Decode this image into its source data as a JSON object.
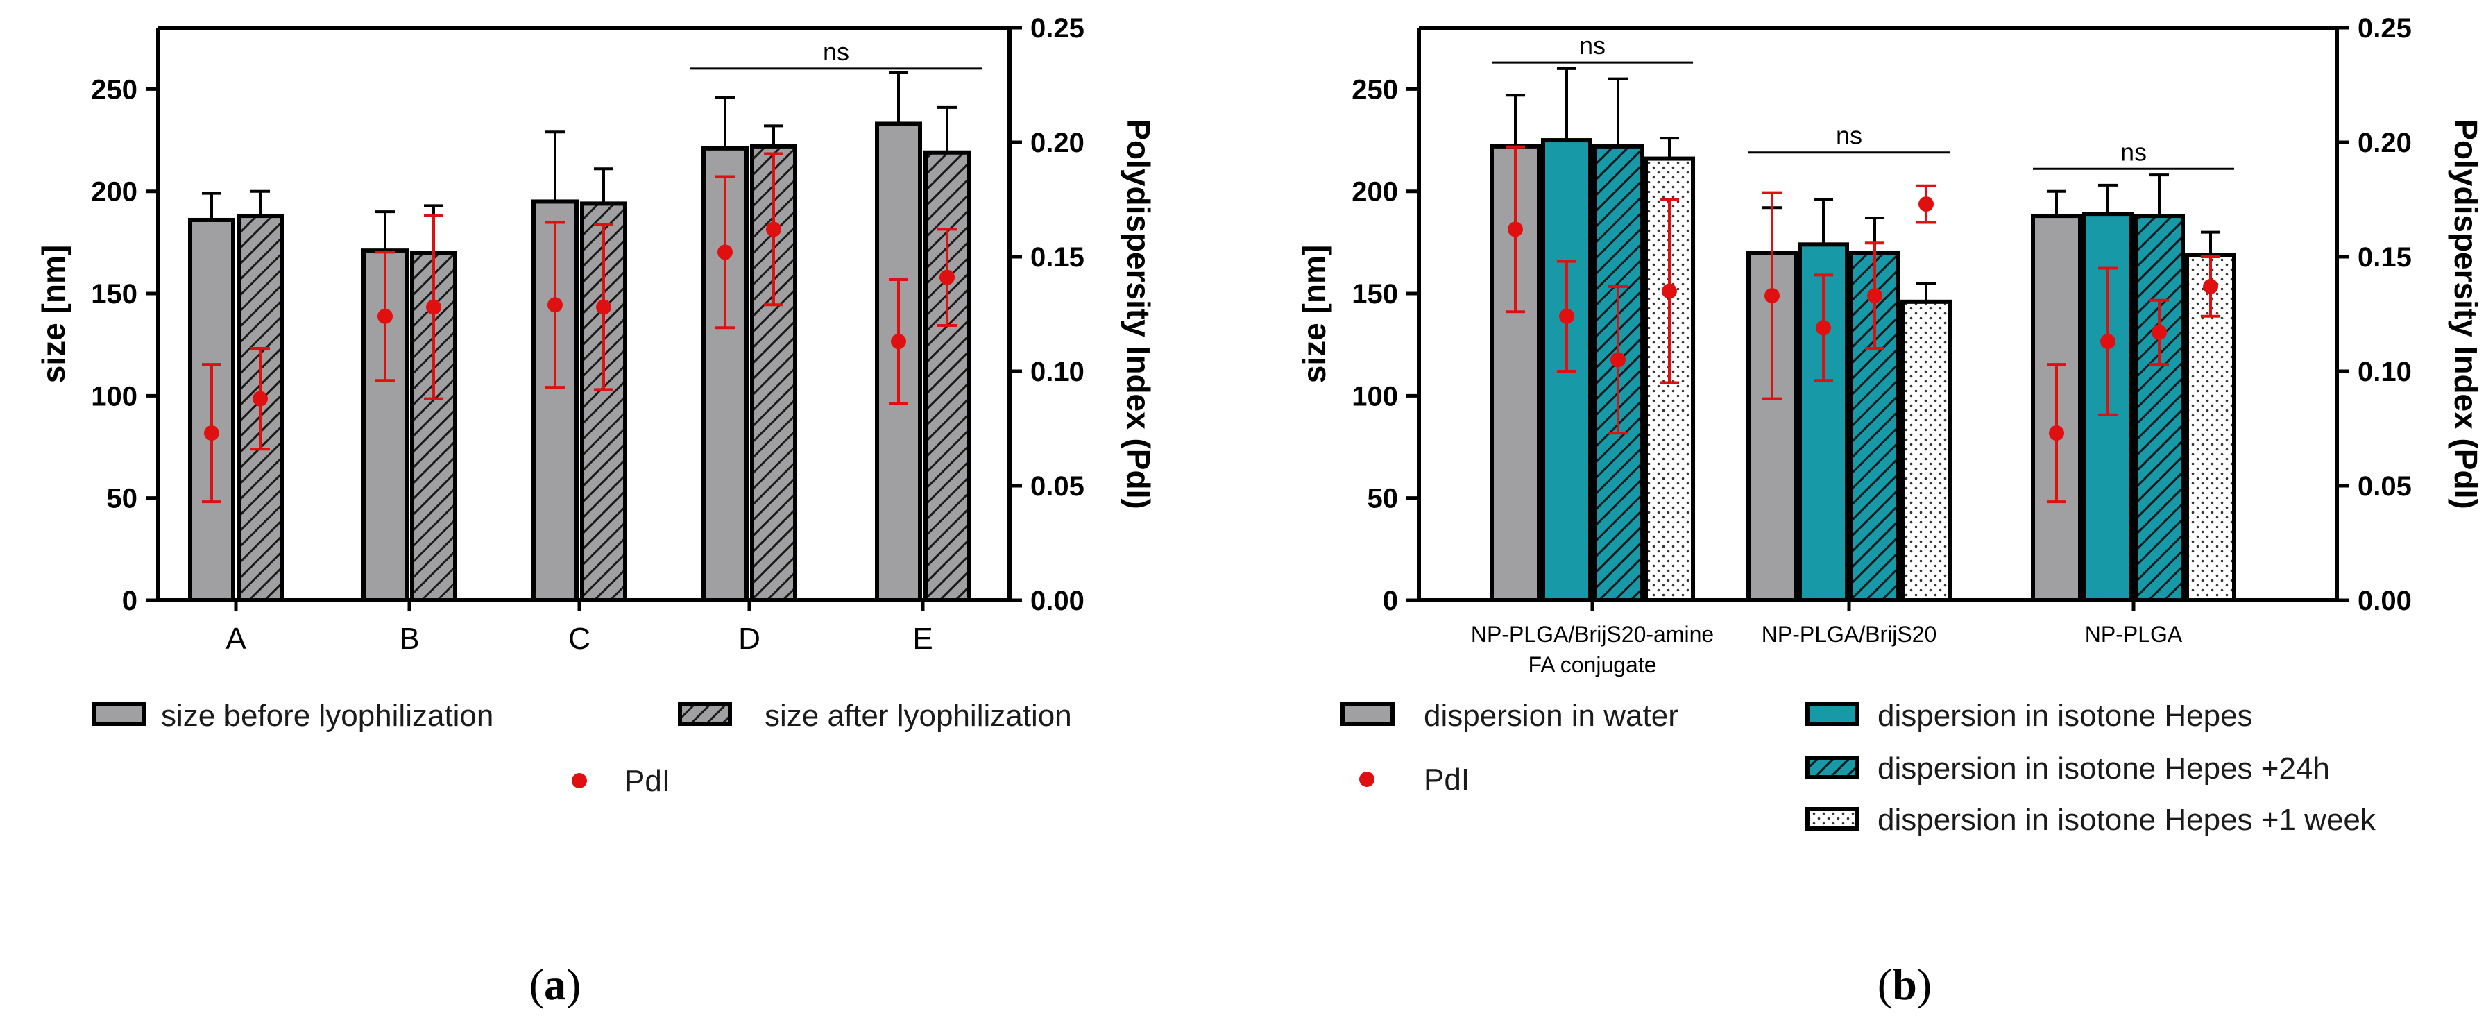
{
  "chart_data": [
    {
      "type": "bar",
      "panel": "(a)",
      "panel_letter": "a",
      "ylabel_left": "size [nm]",
      "ylabel_right": "Polydispersity Index  (PdI)",
      "ylim_left": [
        0,
        280
      ],
      "ylim_right": [
        0,
        0.25
      ],
      "yticks_left": [
        0,
        50,
        100,
        150,
        200,
        250
      ],
      "yticks_right": [
        "0.00",
        "0.05",
        "0.10",
        "0.15",
        "0.20",
        "0.25"
      ],
      "categories": [
        "A",
        "B",
        "C",
        "D",
        "E"
      ],
      "series": [
        {
          "name": "size before lyophilization",
          "style": "solid-gray",
          "values": [
            186,
            171,
            195,
            221,
            233
          ],
          "errors": [
            13,
            19,
            34,
            25,
            25
          ]
        },
        {
          "name": "size after lyophilization",
          "style": "hatched-gray",
          "values": [
            188,
            170,
            194,
            222,
            219
          ],
          "errors": [
            12,
            23,
            17,
            10,
            22
          ]
        }
      ],
      "pdi": {
        "name": "PdI",
        "values": [
          0.073,
          0.088,
          0.124,
          0.128,
          0.129,
          0.128,
          0.152,
          0.162,
          0.113,
          0.141
        ],
        "errors": [
          0.03,
          0.022,
          0.028,
          0.04,
          0.036,
          0.036,
          0.033,
          0.033,
          0.027,
          0.021
        ]
      },
      "annotations": [
        {
          "text": "ns",
          "from": "D",
          "to": "E",
          "y": 260
        }
      ]
    },
    {
      "type": "bar",
      "panel": "(b)",
      "panel_letter": "b",
      "ylabel_left": "size [nm]",
      "ylabel_right": "Polydispersity Index  (PdI)",
      "ylim_left": [
        0,
        280
      ],
      "ylim_right": [
        0,
        0.25
      ],
      "yticks_left": [
        0,
        50,
        100,
        150,
        200,
        250
      ],
      "yticks_right": [
        "0.00",
        "0.05",
        "0.10",
        "0.15",
        "0.20",
        "0.25"
      ],
      "categories": [
        "NP-PLGA/BrijS20-amine FA conjugate",
        "NP-PLGA/BrijS20",
        "NP-PLGA"
      ],
      "category_lines": [
        [
          "NP-PLGA/BrijS20-amine",
          "FA conjugate"
        ],
        [
          "NP-PLGA/BrijS20"
        ],
        [
          "NP-PLGA"
        ]
      ],
      "series": [
        {
          "name": "dispersion in water",
          "style": "solid-gray",
          "values": [
            222,
            170,
            188
          ],
          "errors": [
            25,
            22,
            12
          ]
        },
        {
          "name": "dispersion in isotone Hepes",
          "style": "solid-teal",
          "values": [
            225,
            174,
            189
          ],
          "errors": [
            35,
            22,
            14
          ]
        },
        {
          "name": "dispersion in isotone Hepes +24h",
          "style": "hatched-teal",
          "values": [
            222,
            170,
            188
          ],
          "errors": [
            33,
            17,
            20
          ]
        },
        {
          "name": "dispersion in isotone Hepes +1 week",
          "style": "dotted-white",
          "values": [
            216,
            146,
            169
          ],
          "errors": [
            10,
            9,
            11
          ]
        }
      ],
      "pdi": {
        "name": "PdI",
        "values": [
          0.162,
          0.124,
          0.105,
          0.135,
          0.133,
          0.119,
          0.133,
          0.173,
          0.073,
          0.113,
          0.117,
          0.137
        ],
        "errors": [
          0.036,
          0.024,
          0.032,
          0.04,
          0.045,
          0.023,
          0.023,
          0.008,
          0.03,
          0.032,
          0.014,
          0.013
        ]
      },
      "annotations": [
        {
          "text": "ns",
          "group": 0,
          "y": 263
        },
        {
          "text": "ns",
          "group": 1,
          "y": 219
        },
        {
          "text": "ns",
          "group": 2,
          "y": 211
        }
      ]
    }
  ],
  "colors": {
    "gray": "#a0a0a2",
    "teal": "#1799a8",
    "pdi": "#e01010",
    "white": "#ffffff"
  }
}
